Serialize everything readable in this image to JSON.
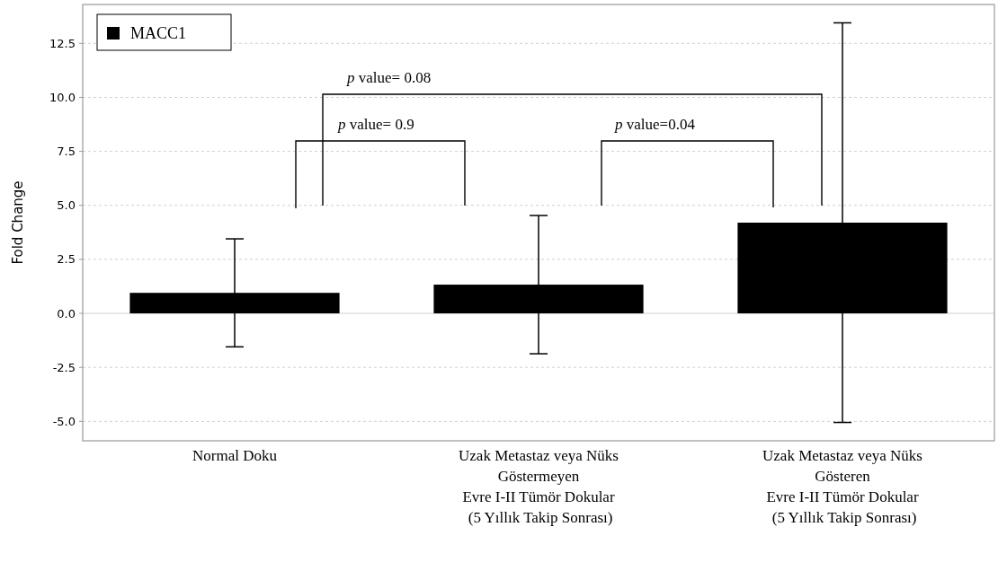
{
  "chart_data": {
    "type": "bar",
    "ylabel": "Fold Change",
    "categories": [
      "Normal Doku",
      "Uzak Metastaz veya Nüks\nGöstermeyen\nEvre I-II Tümör Dokular\n (5 Yıllık Takip Sonrası)",
      "Uzak Metastaz veya Nüks\nGösteren\nEvre I-II Tümör Dokular\n (5 Yıllık Takip Sonrası)"
    ],
    "series": [
      {
        "name": "MACC1",
        "color": "#000000",
        "values": [
          0.95,
          1.33,
          4.2
        ],
        "errors": [
          2.5,
          3.2,
          9.25
        ]
      }
    ],
    "ylim": [
      -5.9,
      14.3
    ],
    "yticks": [
      {
        "value": -5,
        "label": "-5.0"
      },
      -2.5,
      {
        "value": 0,
        "label": "0.0"
      },
      2.5,
      {
        "value": 5,
        "label": "5.0"
      },
      7.5,
      {
        "value": 10,
        "label": "10.0"
      },
      12.5
    ],
    "grid": "y",
    "legend": "top left",
    "annotations": [
      "p value= 0.9",
      "p value= 0.08",
      "p value=0.04"
    ]
  }
}
